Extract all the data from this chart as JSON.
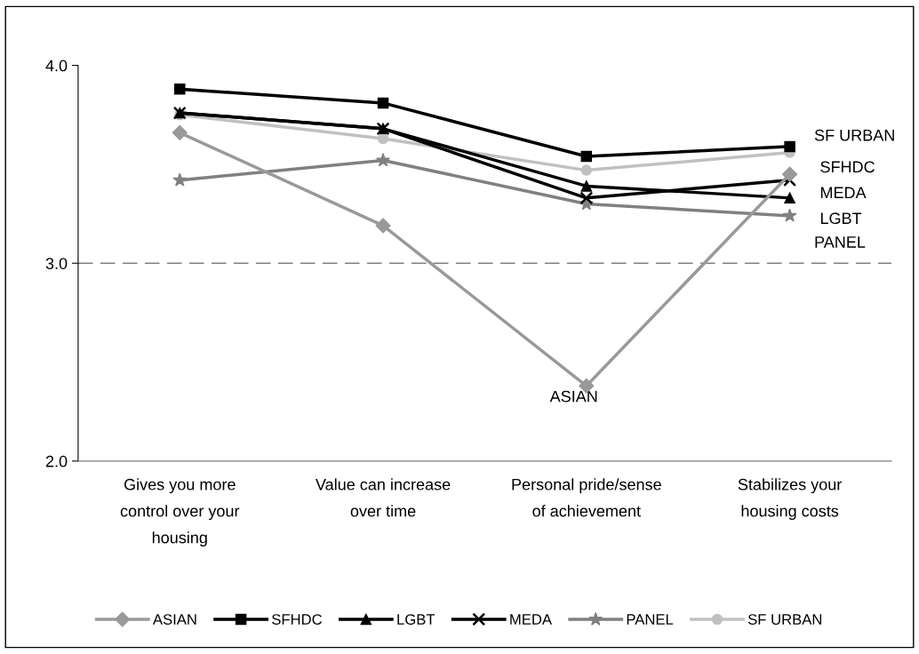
{
  "chart_data": {
    "type": "line",
    "categories": [
      "Gives you more\ncontrol over your\nhousing",
      "Value can increase\nover time",
      "Personal pride/sense\nof achievement",
      "Stabilizes your\nhousing costs"
    ],
    "series": [
      {
        "name": "ASIAN",
        "color": "#999999",
        "marker": "diamond",
        "values": [
          3.66,
          3.19,
          2.38,
          3.45
        ]
      },
      {
        "name": "SFHDC",
        "color": "#000000",
        "marker": "square",
        "values": [
          3.88,
          3.81,
          3.54,
          3.59
        ]
      },
      {
        "name": "LGBT",
        "color": "#000000",
        "marker": "triangle",
        "values": [
          3.76,
          3.68,
          3.39,
          3.33
        ]
      },
      {
        "name": "MEDA",
        "color": "#000000",
        "marker": "cross",
        "values": [
          3.76,
          3.68,
          3.33,
          3.42
        ]
      },
      {
        "name": "PANEL",
        "color": "#808080",
        "marker": "star",
        "values": [
          3.42,
          3.52,
          3.3,
          3.24
        ]
      },
      {
        "name": "SF URBAN",
        "color": "#c0c0c0",
        "marker": "circle",
        "values": [
          3.75,
          3.63,
          3.47,
          3.56
        ]
      }
    ],
    "ylim": [
      2,
      4
    ],
    "yticks": [
      {
        "value": 2,
        "label": "2.0"
      },
      {
        "value": 3,
        "label": "3.0"
      },
      {
        "value": 4,
        "label": "4.0"
      }
    ],
    "ref_lines": [
      {
        "axis": "y",
        "value": 3,
        "color": "#808080",
        "line_style": "dashed"
      }
    ],
    "annotations": [
      "SF URBAN",
      "SFHDC",
      "MEDA",
      "LGBT",
      "PANEL",
      "ASIAN"
    ],
    "grid": false,
    "legend": "bottom"
  }
}
